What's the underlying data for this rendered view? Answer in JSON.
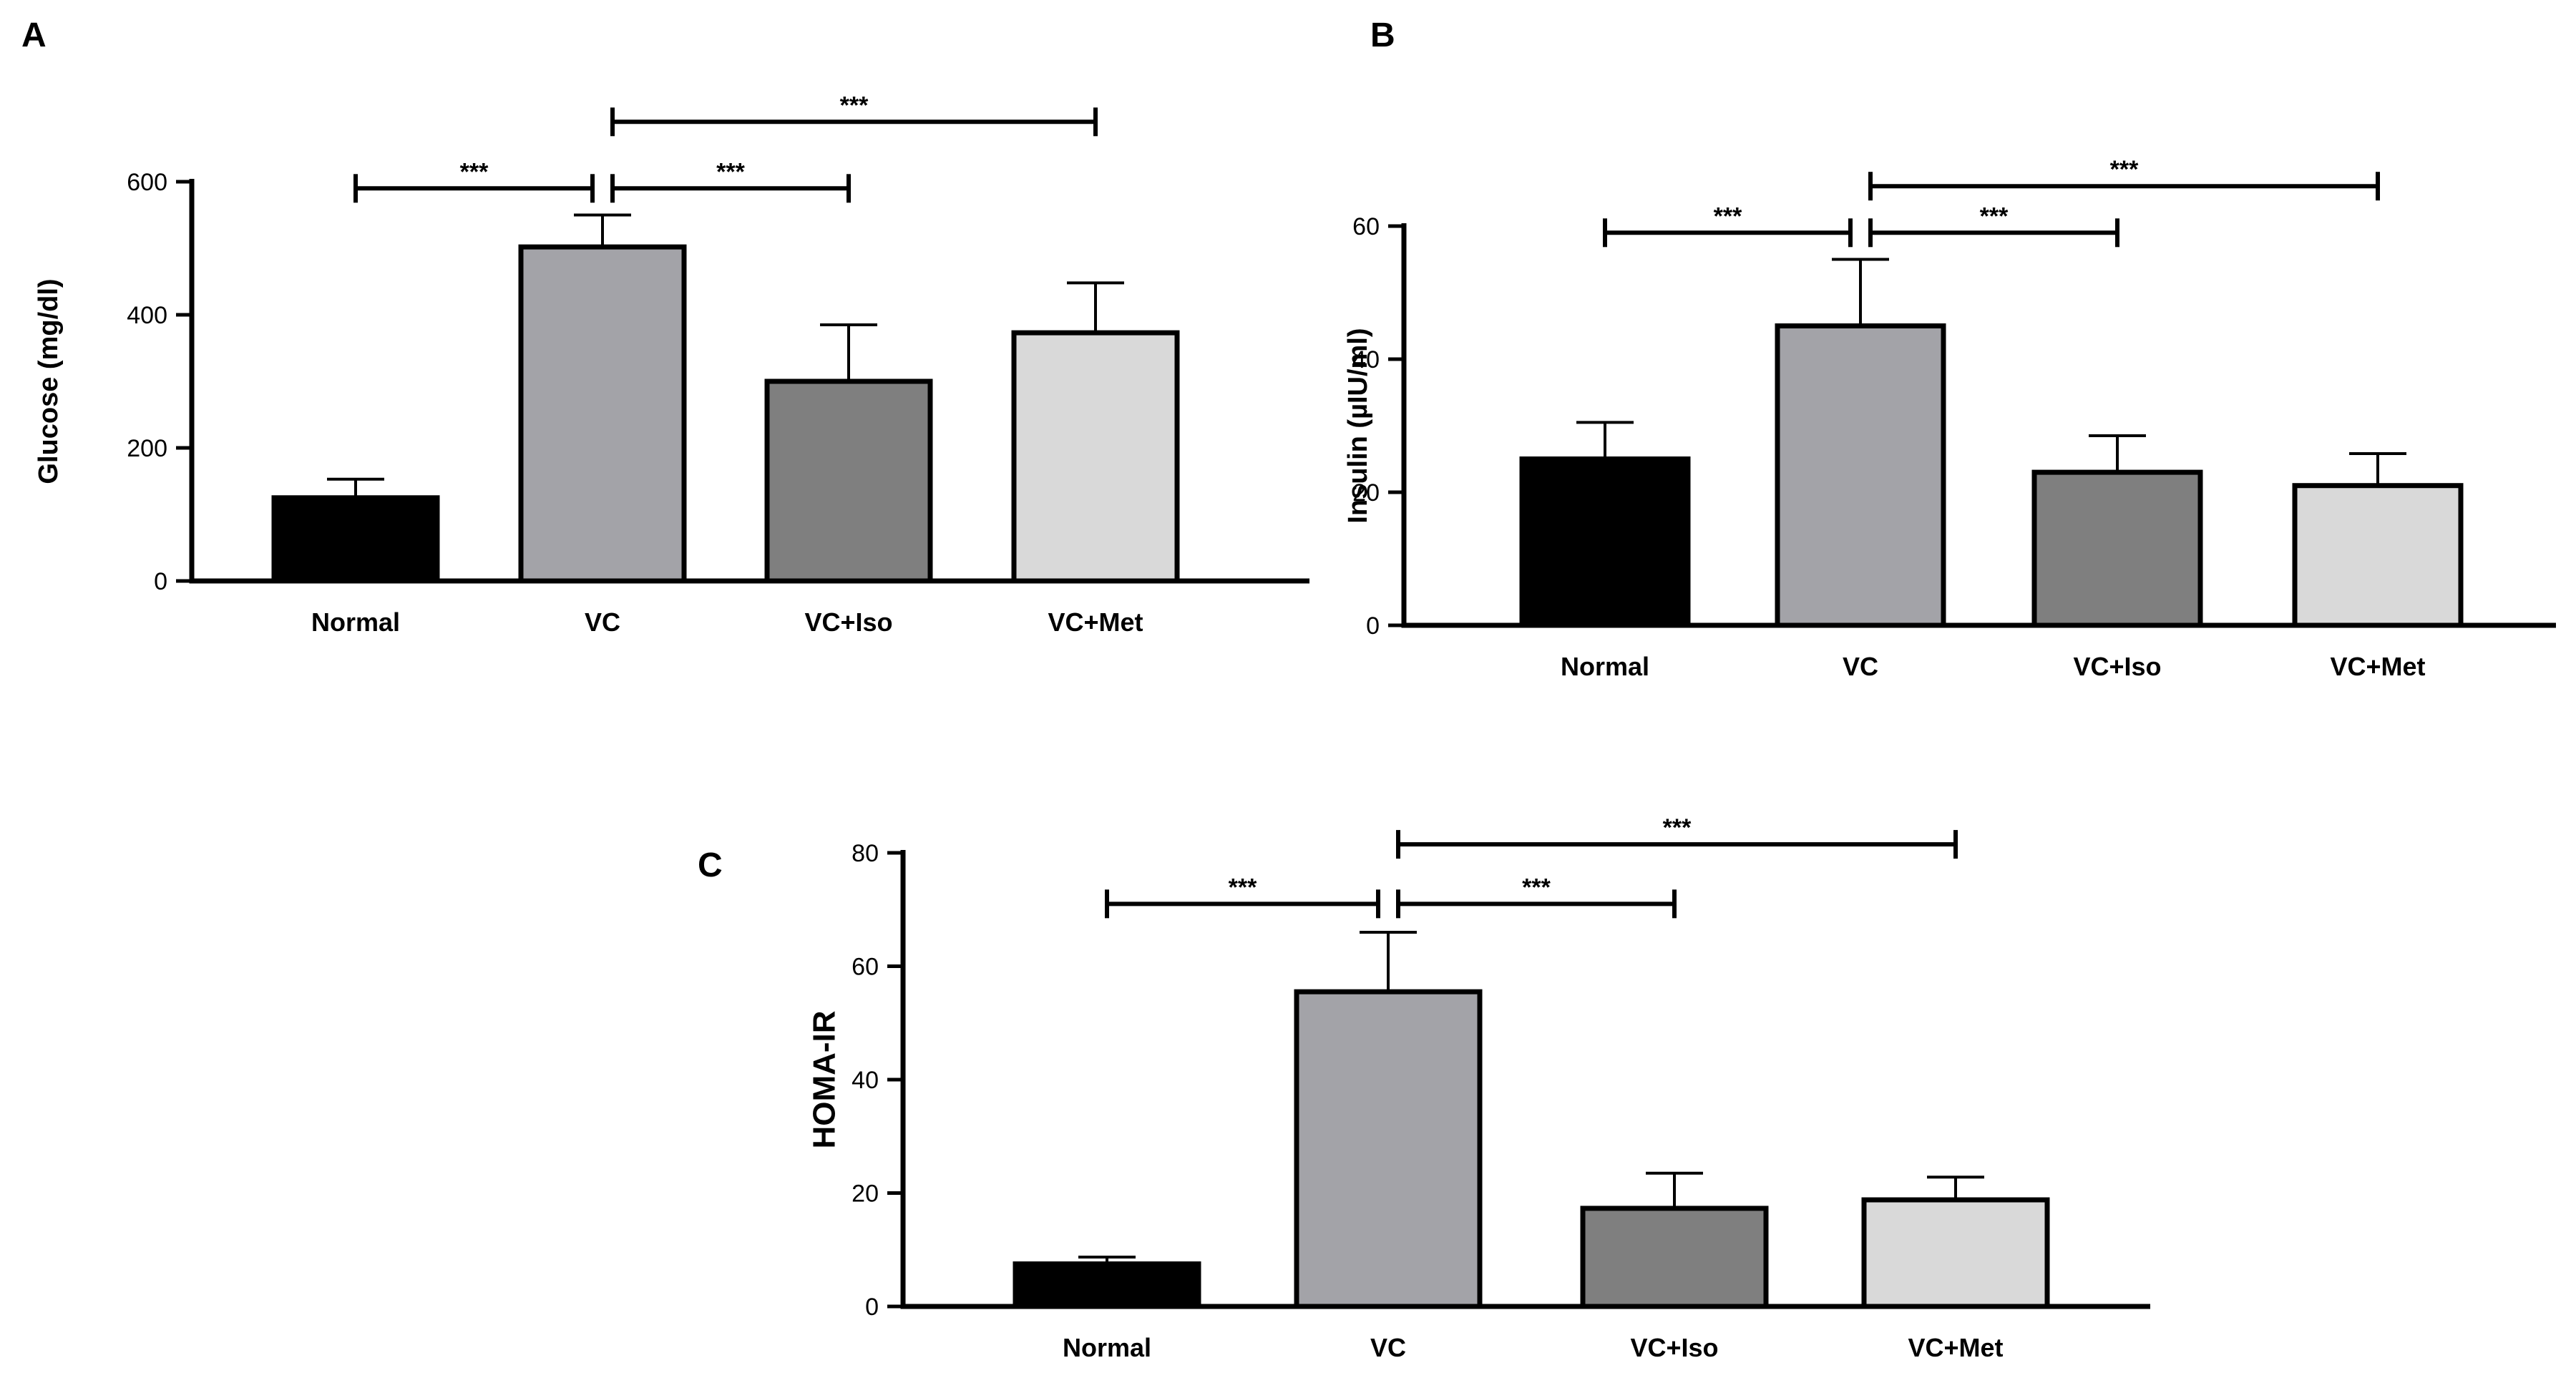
{
  "colors": {
    "axis": "#000000",
    "bar_outline": "#000000",
    "Normal": "#000000",
    "VC": "#a3a3a8",
    "VC+Iso": "#7f7f7f",
    "VC+Met": "#d9d9d9"
  },
  "chart_data": [
    {
      "panel": "A",
      "type": "bar",
      "title": "",
      "xlabel": "",
      "ylabel": "Glucose (mg/dl)",
      "categories": [
        "Normal",
        "VC",
        "VC+Iso",
        "VC+Met"
      ],
      "values": [
        125,
        502,
        300,
        373
      ],
      "errors": [
        28,
        48,
        85,
        75
      ],
      "ylim": [
        0,
        600
      ],
      "yticks": [
        0,
        200,
        400,
        600
      ],
      "grid": false,
      "significance": [
        {
          "from": 0,
          "to": 1,
          "label": "***",
          "y": 590
        },
        {
          "from": 1,
          "to": 2,
          "label": "***",
          "y": 590
        },
        {
          "from": 1,
          "to": 3,
          "label": "***",
          "y": 690
        }
      ]
    },
    {
      "panel": "B",
      "type": "bar",
      "title": "",
      "xlabel": "",
      "ylabel": "Insulin (µIU/ml)",
      "categories": [
        "Normal",
        "VC",
        "VC+Iso",
        "VC+Met"
      ],
      "values": [
        25,
        45,
        23,
        21
      ],
      "errors": [
        5.5,
        10,
        5.5,
        4.8
      ],
      "ylim": [
        0,
        60
      ],
      "yticks": [
        0,
        20,
        40,
        60
      ],
      "grid": false,
      "significance": [
        {
          "from": 0,
          "to": 1,
          "label": "***",
          "y": 59
        },
        {
          "from": 1,
          "to": 2,
          "label": "***",
          "y": 59
        },
        {
          "from": 1,
          "to": 3,
          "label": "***",
          "y": 66
        }
      ]
    },
    {
      "panel": "C",
      "type": "bar",
      "title": "",
      "xlabel": "",
      "ylabel": "HOMA-IR",
      "categories": [
        "Normal",
        "VC",
        "VC+Iso",
        "VC+Met"
      ],
      "values": [
        7.5,
        55.5,
        17.3,
        18.8
      ],
      "errors": [
        1.2,
        10.5,
        6.2,
        4
      ],
      "ylim": [
        0,
        80
      ],
      "yticks": [
        0,
        20,
        40,
        60,
        80
      ],
      "grid": false,
      "significance": [
        {
          "from": 0,
          "to": 1,
          "label": "***",
          "y": 71
        },
        {
          "from": 1,
          "to": 2,
          "label": "***",
          "y": 71
        },
        {
          "from": 1,
          "to": 3,
          "label": "***",
          "y": 81.5
        }
      ]
    }
  ]
}
